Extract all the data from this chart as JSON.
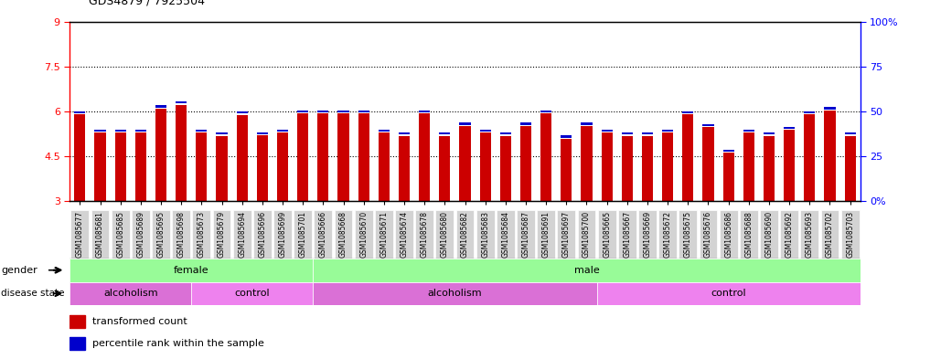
{
  "title": "GDS4879 / 7925504",
  "samples": [
    "GSM1085677",
    "GSM1085681",
    "GSM1085685",
    "GSM1085689",
    "GSM1085695",
    "GSM1085698",
    "GSM1085673",
    "GSM1085679",
    "GSM1085694",
    "GSM1085696",
    "GSM1085699",
    "GSM1085701",
    "GSM1085666",
    "GSM1085668",
    "GSM1085670",
    "GSM1085671",
    "GSM1085674",
    "GSM1085678",
    "GSM1085680",
    "GSM1085682",
    "GSM1085683",
    "GSM1085684",
    "GSM1085687",
    "GSM1085691",
    "GSM1085697",
    "GSM1085700",
    "GSM1085665",
    "GSM1085667",
    "GSM1085669",
    "GSM1085672",
    "GSM1085675",
    "GSM1085676",
    "GSM1085686",
    "GSM1085688",
    "GSM1085690",
    "GSM1085692",
    "GSM1085693",
    "GSM1085702",
    "GSM1085703"
  ],
  "red_values": [
    5.9,
    5.28,
    5.28,
    5.28,
    6.1,
    6.22,
    5.28,
    5.18,
    5.88,
    5.2,
    5.28,
    5.94,
    5.94,
    5.94,
    5.94,
    5.28,
    5.18,
    5.94,
    5.18,
    5.52,
    5.28,
    5.18,
    5.52,
    5.94,
    5.08,
    5.52,
    5.28,
    5.18,
    5.18,
    5.28,
    5.9,
    5.48,
    4.62,
    5.28,
    5.18,
    5.38,
    5.9,
    6.04,
    5.18
  ],
  "blue_values": [
    5.93,
    5.32,
    5.32,
    5.32,
    6.13,
    6.26,
    5.32,
    5.22,
    5.92,
    5.23,
    5.32,
    5.97,
    5.97,
    5.97,
    5.97,
    5.32,
    5.22,
    5.97,
    5.22,
    5.55,
    5.32,
    5.22,
    5.55,
    5.97,
    5.12,
    5.55,
    5.32,
    5.22,
    5.22,
    5.32,
    5.93,
    5.51,
    4.65,
    5.32,
    5.22,
    5.42,
    5.93,
    6.07,
    5.22
  ],
  "gender": [
    "female",
    "female",
    "female",
    "female",
    "female",
    "female",
    "female",
    "female",
    "female",
    "female",
    "female",
    "female",
    "male",
    "male",
    "male",
    "male",
    "male",
    "male",
    "male",
    "male",
    "male",
    "male",
    "male",
    "male",
    "male",
    "male",
    "male",
    "male",
    "male",
    "male",
    "male",
    "male",
    "male",
    "male",
    "male",
    "male",
    "male",
    "male",
    "male"
  ],
  "disease_state": [
    "alcoholism",
    "alcoholism",
    "alcoholism",
    "alcoholism",
    "alcoholism",
    "alcoholism",
    "control",
    "control",
    "control",
    "control",
    "control",
    "control",
    "alcoholism",
    "alcoholism",
    "alcoholism",
    "alcoholism",
    "alcoholism",
    "alcoholism",
    "alcoholism",
    "alcoholism",
    "alcoholism",
    "alcoholism",
    "alcoholism",
    "alcoholism",
    "alcoholism",
    "alcoholism",
    "control",
    "control",
    "control",
    "control",
    "control",
    "control",
    "control",
    "control",
    "control",
    "control",
    "control",
    "control",
    "control"
  ],
  "ylim_left": [
    3,
    9
  ],
  "ylim_right": [
    0,
    100
  ],
  "yticks_left": [
    3,
    4.5,
    6,
    7.5,
    9
  ],
  "yticks_right": [
    0,
    25,
    50,
    75,
    100
  ],
  "ytick_labels_left": [
    "3",
    "4.5",
    "6",
    "7.5",
    "9"
  ],
  "ytick_labels_right": [
    "0%",
    "25",
    "50",
    "75",
    "100%"
  ],
  "bar_color_red": "#CC0000",
  "bar_color_blue": "#0000CC",
  "bar_width": 0.55,
  "base_value": 3,
  "green_light": "#98FB98",
  "pink_light": "#EE82EE",
  "pink_dark": "#DA70D6"
}
